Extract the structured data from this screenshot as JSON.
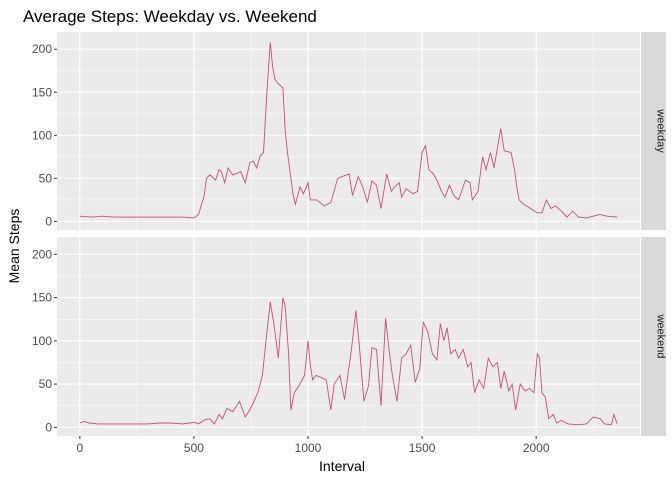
{
  "chart_data": {
    "type": "line",
    "title": "Average Steps: Weekday vs. Weekend",
    "xlabel": "Interval",
    "ylabel": "Mean Steps",
    "xlim": [
      -100,
      2455
    ],
    "ylim": [
      -10,
      220
    ],
    "x_ticks": [
      0,
      500,
      1000,
      1500,
      2000
    ],
    "y_ticks": [
      0,
      50,
      100,
      150,
      200
    ],
    "line_color": "#c94f73",
    "panel_bg": "#ebebeb",
    "strip_bg": "#d9d9d9",
    "grid": true,
    "panels": [
      {
        "strip": "weekday",
        "points": [
          [
            0,
            6
          ],
          [
            50,
            5
          ],
          [
            100,
            6
          ],
          [
            150,
            5
          ],
          [
            200,
            5
          ],
          [
            250,
            5
          ],
          [
            300,
            5
          ],
          [
            350,
            5
          ],
          [
            400,
            5
          ],
          [
            450,
            5
          ],
          [
            500,
            4
          ],
          [
            520,
            8
          ],
          [
            545,
            30
          ],
          [
            555,
            50
          ],
          [
            570,
            54
          ],
          [
            595,
            48
          ],
          [
            610,
            60
          ],
          [
            620,
            58
          ],
          [
            635,
            45
          ],
          [
            650,
            62
          ],
          [
            670,
            54
          ],
          [
            690,
            56
          ],
          [
            705,
            58
          ],
          [
            725,
            45
          ],
          [
            745,
            68
          ],
          [
            760,
            70
          ],
          [
            775,
            62
          ],
          [
            790,
            76
          ],
          [
            805,
            80
          ],
          [
            820,
            150
          ],
          [
            830,
            190
          ],
          [
            835,
            208
          ],
          [
            845,
            180
          ],
          [
            855,
            165
          ],
          [
            870,
            160
          ],
          [
            890,
            155
          ],
          [
            900,
            105
          ],
          [
            910,
            80
          ],
          [
            925,
            50
          ],
          [
            935,
            30
          ],
          [
            945,
            20
          ],
          [
            965,
            40
          ],
          [
            980,
            32
          ],
          [
            1000,
            45
          ],
          [
            1010,
            25
          ],
          [
            1040,
            25
          ],
          [
            1070,
            18
          ],
          [
            1100,
            22
          ],
          [
            1130,
            50
          ],
          [
            1150,
            52
          ],
          [
            1180,
            55
          ],
          [
            1195,
            30
          ],
          [
            1220,
            52
          ],
          [
            1240,
            40
          ],
          [
            1260,
            22
          ],
          [
            1280,
            47
          ],
          [
            1300,
            42
          ],
          [
            1320,
            15
          ],
          [
            1345,
            55
          ],
          [
            1365,
            35
          ],
          [
            1380,
            40
          ],
          [
            1400,
            45
          ],
          [
            1410,
            28
          ],
          [
            1430,
            38
          ],
          [
            1460,
            32
          ],
          [
            1480,
            35
          ],
          [
            1500,
            80
          ],
          [
            1515,
            88
          ],
          [
            1530,
            60
          ],
          [
            1550,
            55
          ],
          [
            1565,
            48
          ],
          [
            1585,
            35
          ],
          [
            1600,
            28
          ],
          [
            1620,
            42
          ],
          [
            1640,
            30
          ],
          [
            1660,
            25
          ],
          [
            1690,
            48
          ],
          [
            1710,
            45
          ],
          [
            1720,
            25
          ],
          [
            1745,
            35
          ],
          [
            1765,
            75
          ],
          [
            1780,
            60
          ],
          [
            1800,
            80
          ],
          [
            1815,
            62
          ],
          [
            1830,
            85
          ],
          [
            1845,
            108
          ],
          [
            1860,
            82
          ],
          [
            1890,
            80
          ],
          [
            1905,
            60
          ],
          [
            1915,
            40
          ],
          [
            1925,
            25
          ],
          [
            1945,
            20
          ],
          [
            1975,
            15
          ],
          [
            2005,
            10
          ],
          [
            2025,
            10
          ],
          [
            2045,
            25
          ],
          [
            2065,
            15
          ],
          [
            2085,
            18
          ],
          [
            2110,
            12
          ],
          [
            2135,
            5
          ],
          [
            2160,
            12
          ],
          [
            2185,
            5
          ],
          [
            2220,
            4
          ],
          [
            2250,
            6
          ],
          [
            2280,
            8
          ],
          [
            2310,
            6
          ],
          [
            2355,
            5
          ]
        ]
      },
      {
        "strip": "weekend",
        "points": [
          [
            0,
            5
          ],
          [
            20,
            7
          ],
          [
            40,
            5
          ],
          [
            80,
            4
          ],
          [
            150,
            4
          ],
          [
            200,
            4
          ],
          [
            250,
            4
          ],
          [
            300,
            4
          ],
          [
            350,
            5
          ],
          [
            400,
            5
          ],
          [
            450,
            4
          ],
          [
            480,
            5
          ],
          [
            500,
            6
          ],
          [
            520,
            4
          ],
          [
            550,
            9
          ],
          [
            570,
            10
          ],
          [
            590,
            4
          ],
          [
            610,
            15
          ],
          [
            625,
            10
          ],
          [
            645,
            22
          ],
          [
            670,
            18
          ],
          [
            700,
            30
          ],
          [
            725,
            12
          ],
          [
            745,
            20
          ],
          [
            760,
            28
          ],
          [
            780,
            40
          ],
          [
            800,
            60
          ],
          [
            820,
            110
          ],
          [
            835,
            145
          ],
          [
            850,
            120
          ],
          [
            870,
            80
          ],
          [
            890,
            150
          ],
          [
            900,
            140
          ],
          [
            915,
            85
          ],
          [
            925,
            20
          ],
          [
            940,
            40
          ],
          [
            960,
            48
          ],
          [
            985,
            60
          ],
          [
            1000,
            100
          ],
          [
            1010,
            72
          ],
          [
            1020,
            55
          ],
          [
            1035,
            60
          ],
          [
            1055,
            58
          ],
          [
            1080,
            55
          ],
          [
            1100,
            20
          ],
          [
            1115,
            50
          ],
          [
            1140,
            60
          ],
          [
            1160,
            32
          ],
          [
            1190,
            90
          ],
          [
            1210,
            135
          ],
          [
            1225,
            95
          ],
          [
            1245,
            30
          ],
          [
            1265,
            48
          ],
          [
            1280,
            92
          ],
          [
            1300,
            90
          ],
          [
            1320,
            25
          ],
          [
            1340,
            126
          ],
          [
            1355,
            90
          ],
          [
            1370,
            60
          ],
          [
            1390,
            30
          ],
          [
            1410,
            80
          ],
          [
            1430,
            85
          ],
          [
            1450,
            95
          ],
          [
            1470,
            52
          ],
          [
            1490,
            68
          ],
          [
            1505,
            122
          ],
          [
            1525,
            110
          ],
          [
            1545,
            85
          ],
          [
            1565,
            78
          ],
          [
            1580,
            120
          ],
          [
            1595,
            100
          ],
          [
            1610,
            115
          ],
          [
            1625,
            85
          ],
          [
            1645,
            90
          ],
          [
            1660,
            80
          ],
          [
            1680,
            90
          ],
          [
            1700,
            70
          ],
          [
            1715,
            75
          ],
          [
            1730,
            40
          ],
          [
            1750,
            55
          ],
          [
            1770,
            45
          ],
          [
            1790,
            80
          ],
          [
            1810,
            70
          ],
          [
            1830,
            75
          ],
          [
            1845,
            45
          ],
          [
            1860,
            65
          ],
          [
            1880,
            42
          ],
          [
            1895,
            50
          ],
          [
            1910,
            20
          ],
          [
            1930,
            50
          ],
          [
            1950,
            42
          ],
          [
            1970,
            45
          ],
          [
            1990,
            40
          ],
          [
            2005,
            85
          ],
          [
            2015,
            80
          ],
          [
            2025,
            40
          ],
          [
            2040,
            35
          ],
          [
            2055,
            10
          ],
          [
            2075,
            15
          ],
          [
            2090,
            5
          ],
          [
            2110,
            8
          ],
          [
            2140,
            4
          ],
          [
            2180,
            3
          ],
          [
            2220,
            4
          ],
          [
            2250,
            12
          ],
          [
            2280,
            10
          ],
          [
            2300,
            4
          ],
          [
            2330,
            3
          ],
          [
            2340,
            15
          ],
          [
            2355,
            4
          ]
        ]
      }
    ]
  }
}
